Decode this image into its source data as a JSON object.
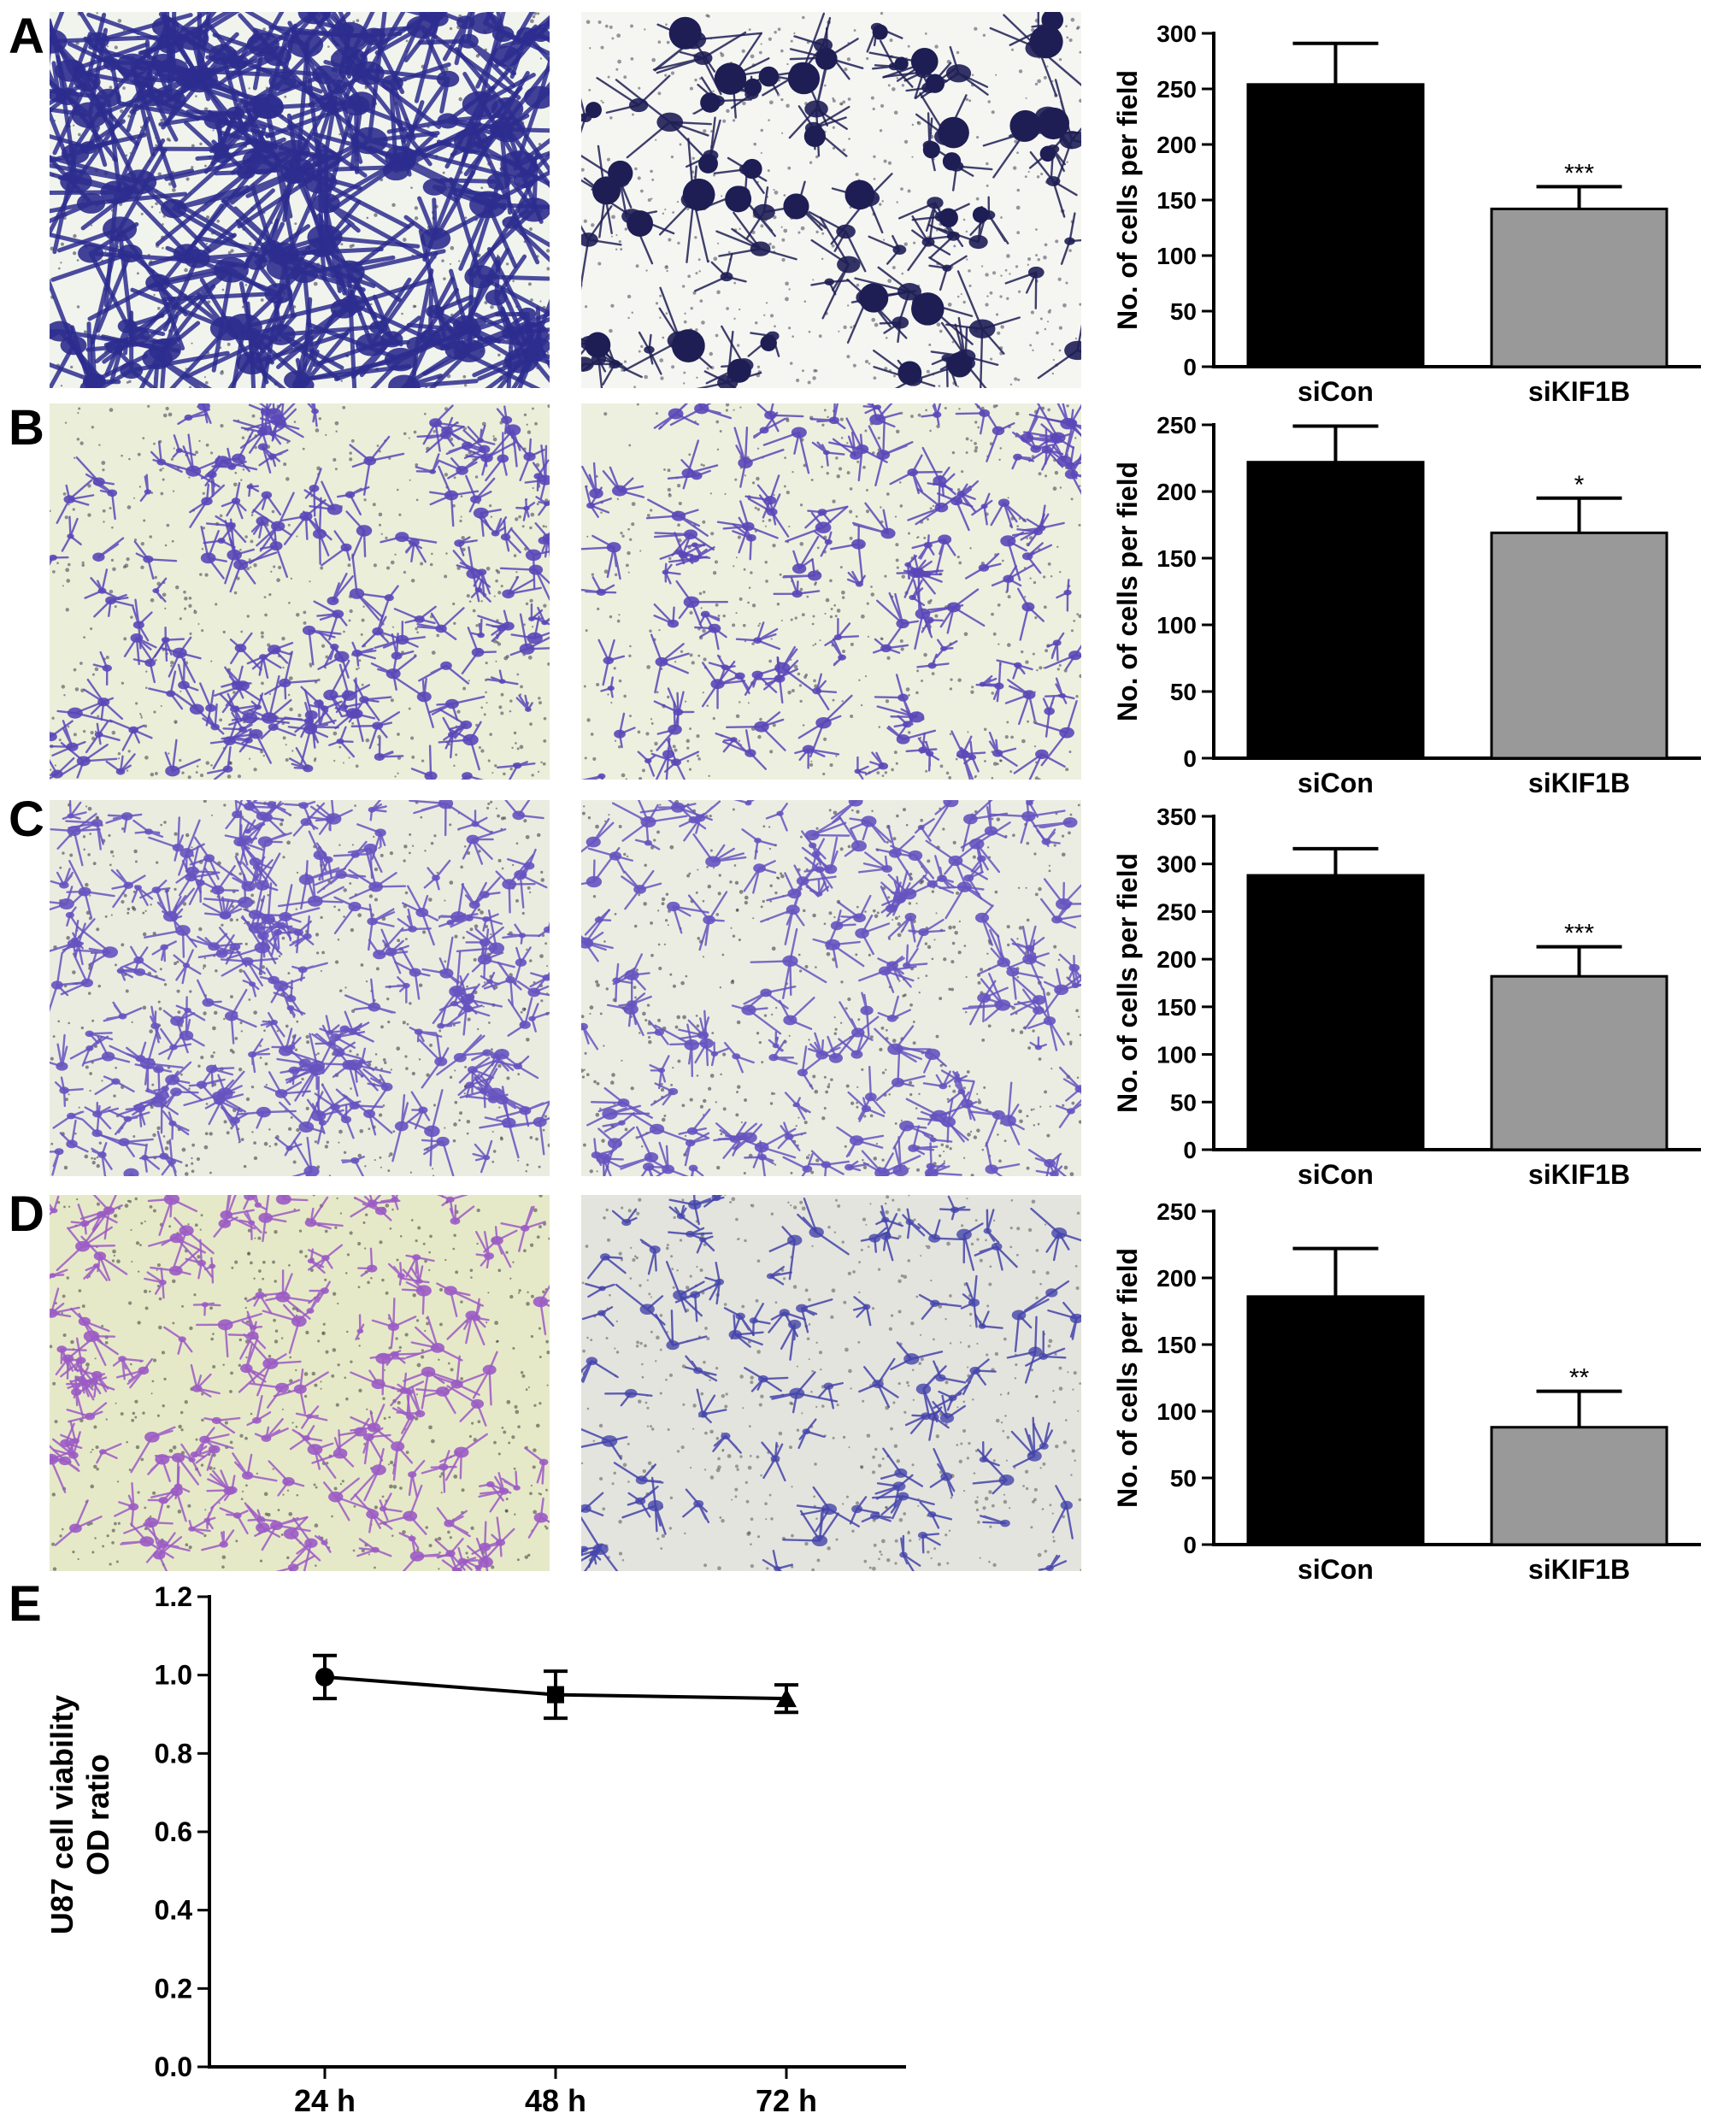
{
  "panel_letters": [
    "A",
    "B",
    "C",
    "D",
    "E"
  ],
  "micrographs": [
    {
      "panel": "A",
      "condition": "siCon",
      "bg": "#f1f4ec",
      "cell": "#2d2d8f",
      "dots": "#333344",
      "density": 150,
      "style": "network"
    },
    {
      "panel": "A",
      "condition": "siKIF1B",
      "bg": "#f5f5f2",
      "cell": "#1e1e55",
      "dots": "#444455",
      "density": 75,
      "style": "clumps"
    },
    {
      "panel": "B",
      "condition": "siCon",
      "bg": "#ebeed9",
      "cell": "#5a47b8",
      "dots": "#3a3a4a",
      "density": 170,
      "style": "spread"
    },
    {
      "panel": "B",
      "condition": "siKIF1B",
      "bg": "#eef0df",
      "cell": "#5a47b8",
      "dots": "#3a3a4a",
      "density": 135,
      "style": "spread"
    },
    {
      "panel": "C",
      "condition": "siCon",
      "bg": "#ebece0",
      "cell": "#6653c0",
      "dots": "#2f2f3a",
      "density": 220,
      "style": "spread"
    },
    {
      "panel": "C",
      "condition": "siKIF1B",
      "bg": "#ecede2",
      "cell": "#6653c0",
      "dots": "#2f2f3a",
      "density": 155,
      "style": "spread"
    },
    {
      "panel": "D",
      "condition": "siCon",
      "bg": "#e6e9c8",
      "cell": "#9b5bc4",
      "dots": "#3a3a3a",
      "density": 160,
      "style": "spread"
    },
    {
      "panel": "D",
      "condition": "siKIF1B",
      "bg": "#e4e4de",
      "cell": "#4444aa",
      "dots": "#555555",
      "density": 90,
      "style": "sparse"
    }
  ],
  "chart_data": [
    {
      "panel": "A",
      "type": "bar",
      "ylabel": "No. of cells per field",
      "categories": [
        "siCon",
        "siKIF1B"
      ],
      "values": [
        254,
        142
      ],
      "errors": [
        37,
        20
      ],
      "significance": [
        "",
        "***"
      ],
      "ylim": [
        0,
        300
      ],
      "yticks": [
        0,
        50,
        100,
        150,
        200,
        250,
        300
      ],
      "colors": [
        "#000000",
        "#999999"
      ]
    },
    {
      "panel": "B",
      "type": "bar",
      "ylabel": "No. of cells per field",
      "categories": [
        "siCon",
        "siKIF1B"
      ],
      "values": [
        222,
        169
      ],
      "errors": [
        27,
        26
      ],
      "significance": [
        "",
        "*"
      ],
      "ylim": [
        0,
        250
      ],
      "yticks": [
        0,
        50,
        100,
        150,
        200,
        250
      ],
      "colors": [
        "#000000",
        "#999999"
      ]
    },
    {
      "panel": "C",
      "type": "bar",
      "ylabel": "No. of cells per field",
      "categories": [
        "siCon",
        "siKIF1B"
      ],
      "values": [
        288,
        182
      ],
      "errors": [
        28,
        31
      ],
      "significance": [
        "",
        "***"
      ],
      "ylim": [
        0,
        350
      ],
      "yticks": [
        0,
        50,
        100,
        150,
        200,
        250,
        300,
        350
      ],
      "colors": [
        "#000000",
        "#999999"
      ]
    },
    {
      "panel": "D",
      "type": "bar",
      "ylabel": "No. of cells per field",
      "categories": [
        "siCon",
        "siKIF1B"
      ],
      "values": [
        186,
        88
      ],
      "errors": [
        36,
        27
      ],
      "significance": [
        "",
        "**"
      ],
      "ylim": [
        0,
        250
      ],
      "yticks": [
        0,
        50,
        100,
        150,
        200,
        250
      ],
      "colors": [
        "#000000",
        "#999999"
      ]
    },
    {
      "panel": "E",
      "type": "line",
      "ylabel_lines": [
        "U87 cell viability",
        "OD ratio"
      ],
      "categories": [
        "24 h",
        "48 h",
        "72 h"
      ],
      "values": [
        0.995,
        0.95,
        0.94
      ],
      "errors": [
        0.055,
        0.06,
        0.035
      ],
      "markers": [
        "circle",
        "square",
        "triangle"
      ],
      "ylim": [
        0,
        1.2
      ],
      "yticks": [
        "0.0",
        "0.2",
        "0.4",
        "0.6",
        "0.8",
        "1.0",
        "1.2"
      ],
      "color": "#000000"
    }
  ]
}
